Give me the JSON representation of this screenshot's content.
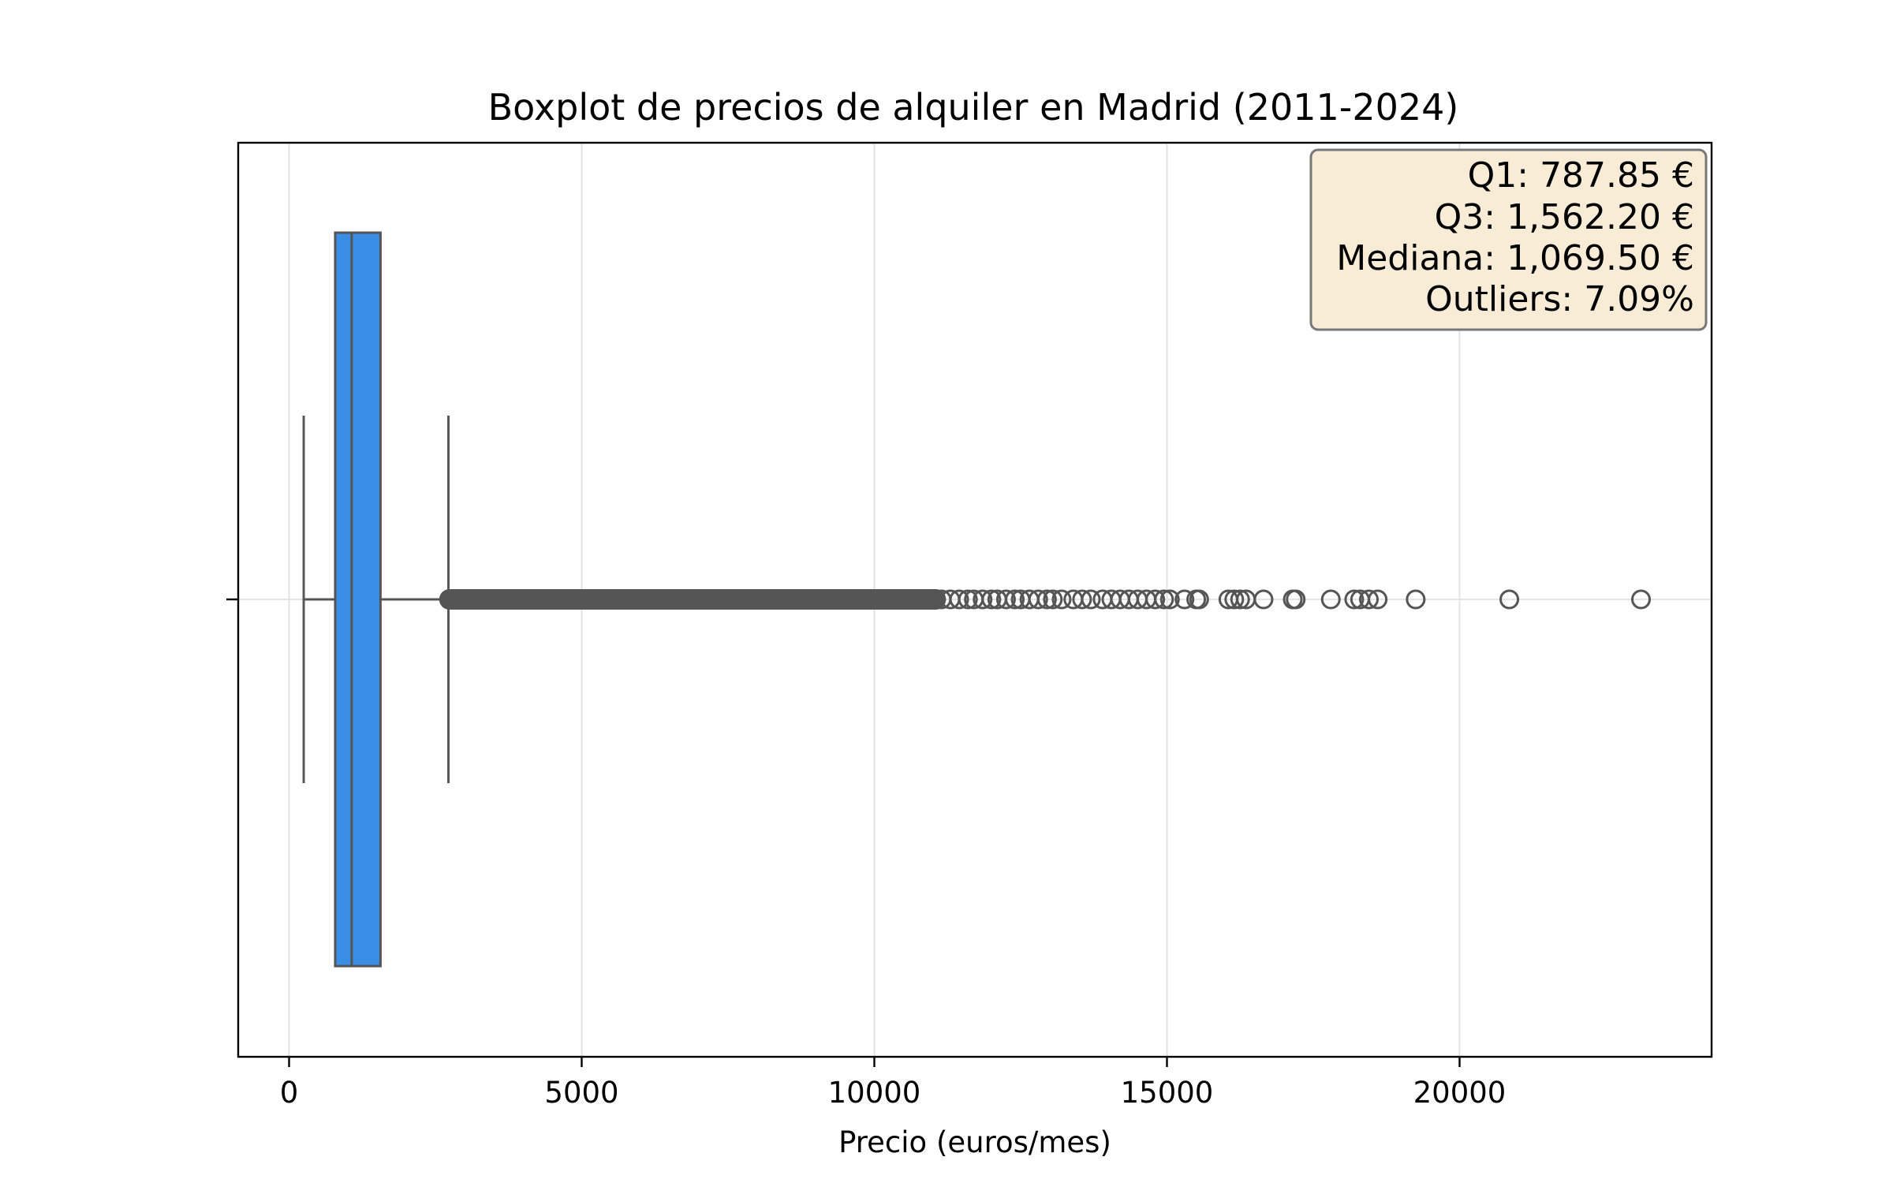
{
  "chart_data": {
    "type": "boxplot",
    "title": "Boxplot de precios de alquiler en Madrid (2011-2024)",
    "xlabel": "Precio (euros/mes)",
    "ylabel": "",
    "xlim": [
      -900,
      24300
    ],
    "xticks": [
      0,
      5000,
      10000,
      15000,
      20000
    ],
    "grid": true,
    "box": {
      "q1": 787.85,
      "median": 1069.5,
      "q3": 1562.2,
      "whisker_low": 250,
      "whisker_high": 2723,
      "color": "#3a8ee6",
      "line_color": "#555555"
    },
    "outlier_dense_range": [
      2740,
      11050
    ],
    "outliers": [
      11150,
      11300,
      11450,
      11600,
      11700,
      11850,
      12000,
      12100,
      12250,
      12400,
      12500,
      12650,
      12800,
      12950,
      13050,
      13200,
      13400,
      13550,
      13700,
      13900,
      14050,
      14200,
      14350,
      14500,
      14650,
      14800,
      14950,
      15050,
      15300,
      15500,
      15550,
      16050,
      16150,
      16250,
      16350,
      16650,
      17150,
      17200,
      17800,
      18200,
      18300,
      18450,
      18600,
      19250,
      20850,
      23100
    ],
    "annotation": {
      "lines": [
        "Q1: 787.85 €",
        "Q3: 1,562.20 €",
        "Mediana: 1,069.50 €",
        "Outliers: 7.09%"
      ],
      "placement": "top-right",
      "background": "#f8ecd6",
      "border": "#777777"
    }
  }
}
